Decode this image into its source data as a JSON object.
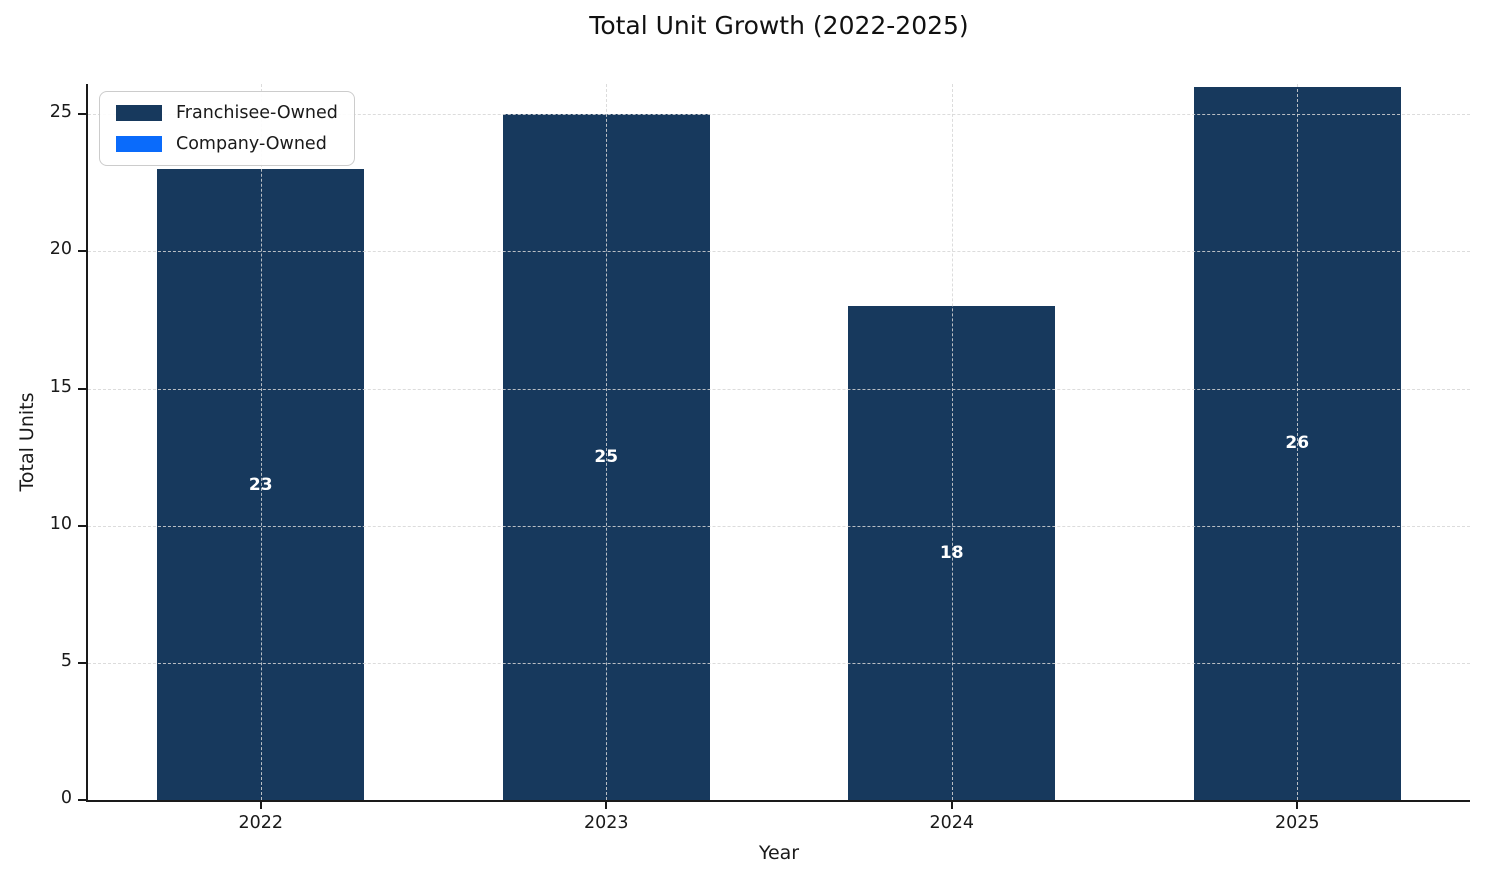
{
  "chart_data": {
    "type": "bar",
    "stacked": true,
    "title": "Total Unit Growth (2022-2025)",
    "xlabel": "Year",
    "ylabel": "Total Units",
    "categories": [
      "2022",
      "2023",
      "2024",
      "2025"
    ],
    "series": [
      {
        "name": "Franchisee-Owned",
        "color": "#17395d",
        "values": [
          23,
          25,
          18,
          26
        ]
      },
      {
        "name": "Company-Owned",
        "color": "#0a6bfb",
        "values": [
          0,
          0,
          0,
          0
        ]
      }
    ],
    "bar_labels": [
      "23",
      "25",
      "18",
      "26"
    ],
    "yticks": [
      0,
      5,
      10,
      15,
      20,
      25
    ],
    "ylim": [
      0,
      26.1
    ],
    "grid": true,
    "grid_style": "dashed",
    "legend_position": "upper-left",
    "colors": {
      "bar_label": "#ffffff",
      "grid": "#d6d6d6",
      "axis": "#1a1a1a",
      "background": "#ffffff"
    }
  }
}
